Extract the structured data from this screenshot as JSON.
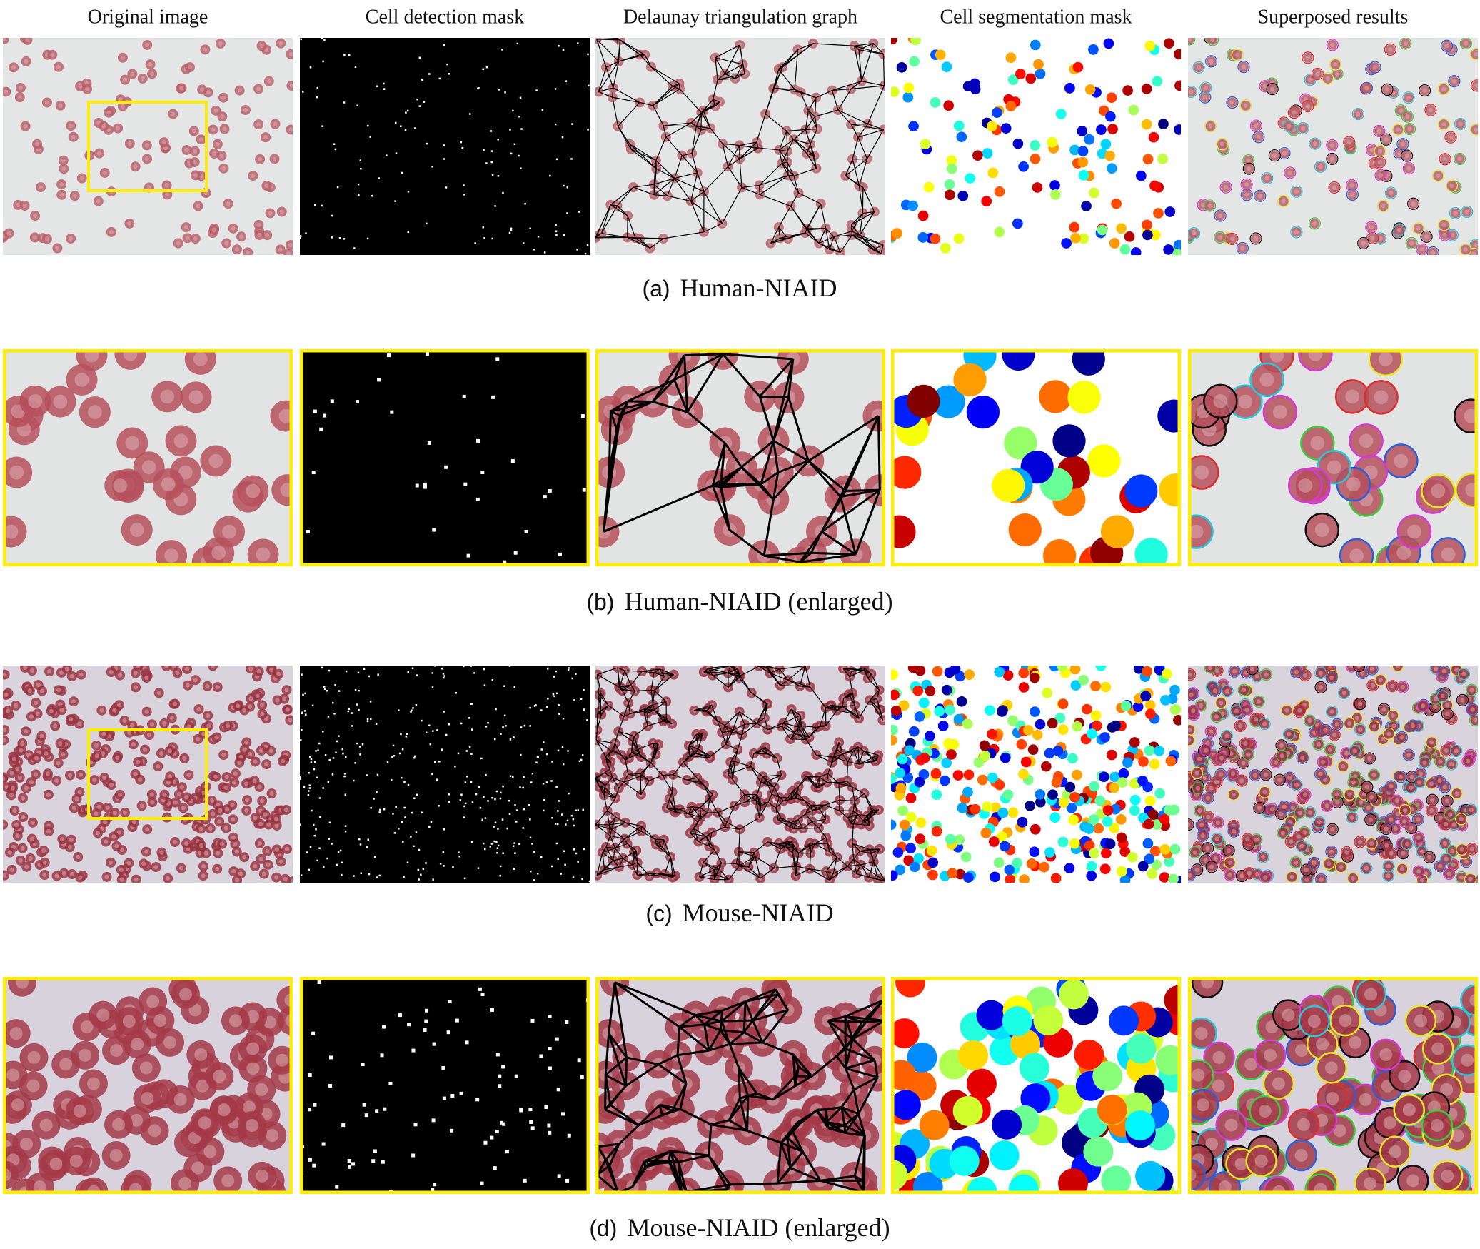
{
  "column_headers": [
    "Original image",
    "Cell detection mask",
    "Delaunay triangulation graph",
    "Cell segmentation mask",
    "Superposed results"
  ],
  "rows": [
    {
      "label": "(a)",
      "name": "Human-NIAID"
    },
    {
      "label": "(b)",
      "name": "Human-NIAID (enlarged)"
    },
    {
      "label": "(c)",
      "name": "Mouse-NIAID"
    },
    {
      "label": "(d)",
      "name": "Mouse-NIAID (enlarged)"
    }
  ]
}
